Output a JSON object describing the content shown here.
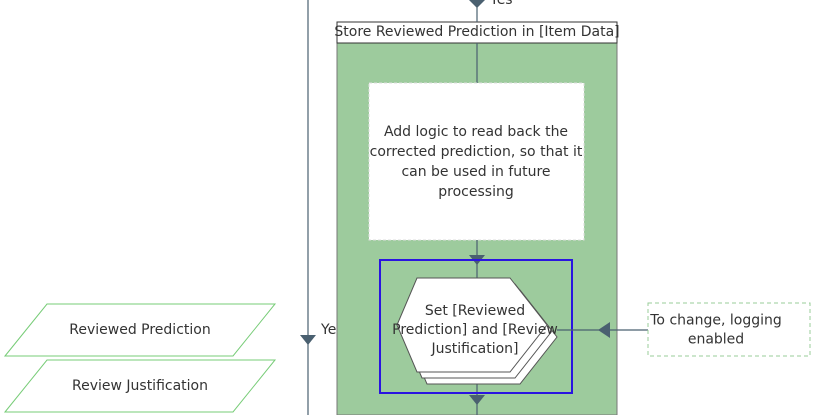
{
  "connectors": {
    "top_label": "Yes",
    "left_label": "Yes"
  },
  "block": {
    "title": "Store Reviewed Prediction in [Item Data]"
  },
  "note": {
    "lines": [
      "Add logic to read back the",
      "corrected prediction, so that it",
      "can be used in future",
      "processing"
    ]
  },
  "stage": {
    "lines": [
      "Set [Reviewed",
      "Prediction] and [Review",
      "Justification]"
    ]
  },
  "comment": {
    "lines": [
      "To change, logging",
      "enabled"
    ]
  },
  "data_items": [
    "Reviewed Prediction",
    "Review Justification"
  ]
}
